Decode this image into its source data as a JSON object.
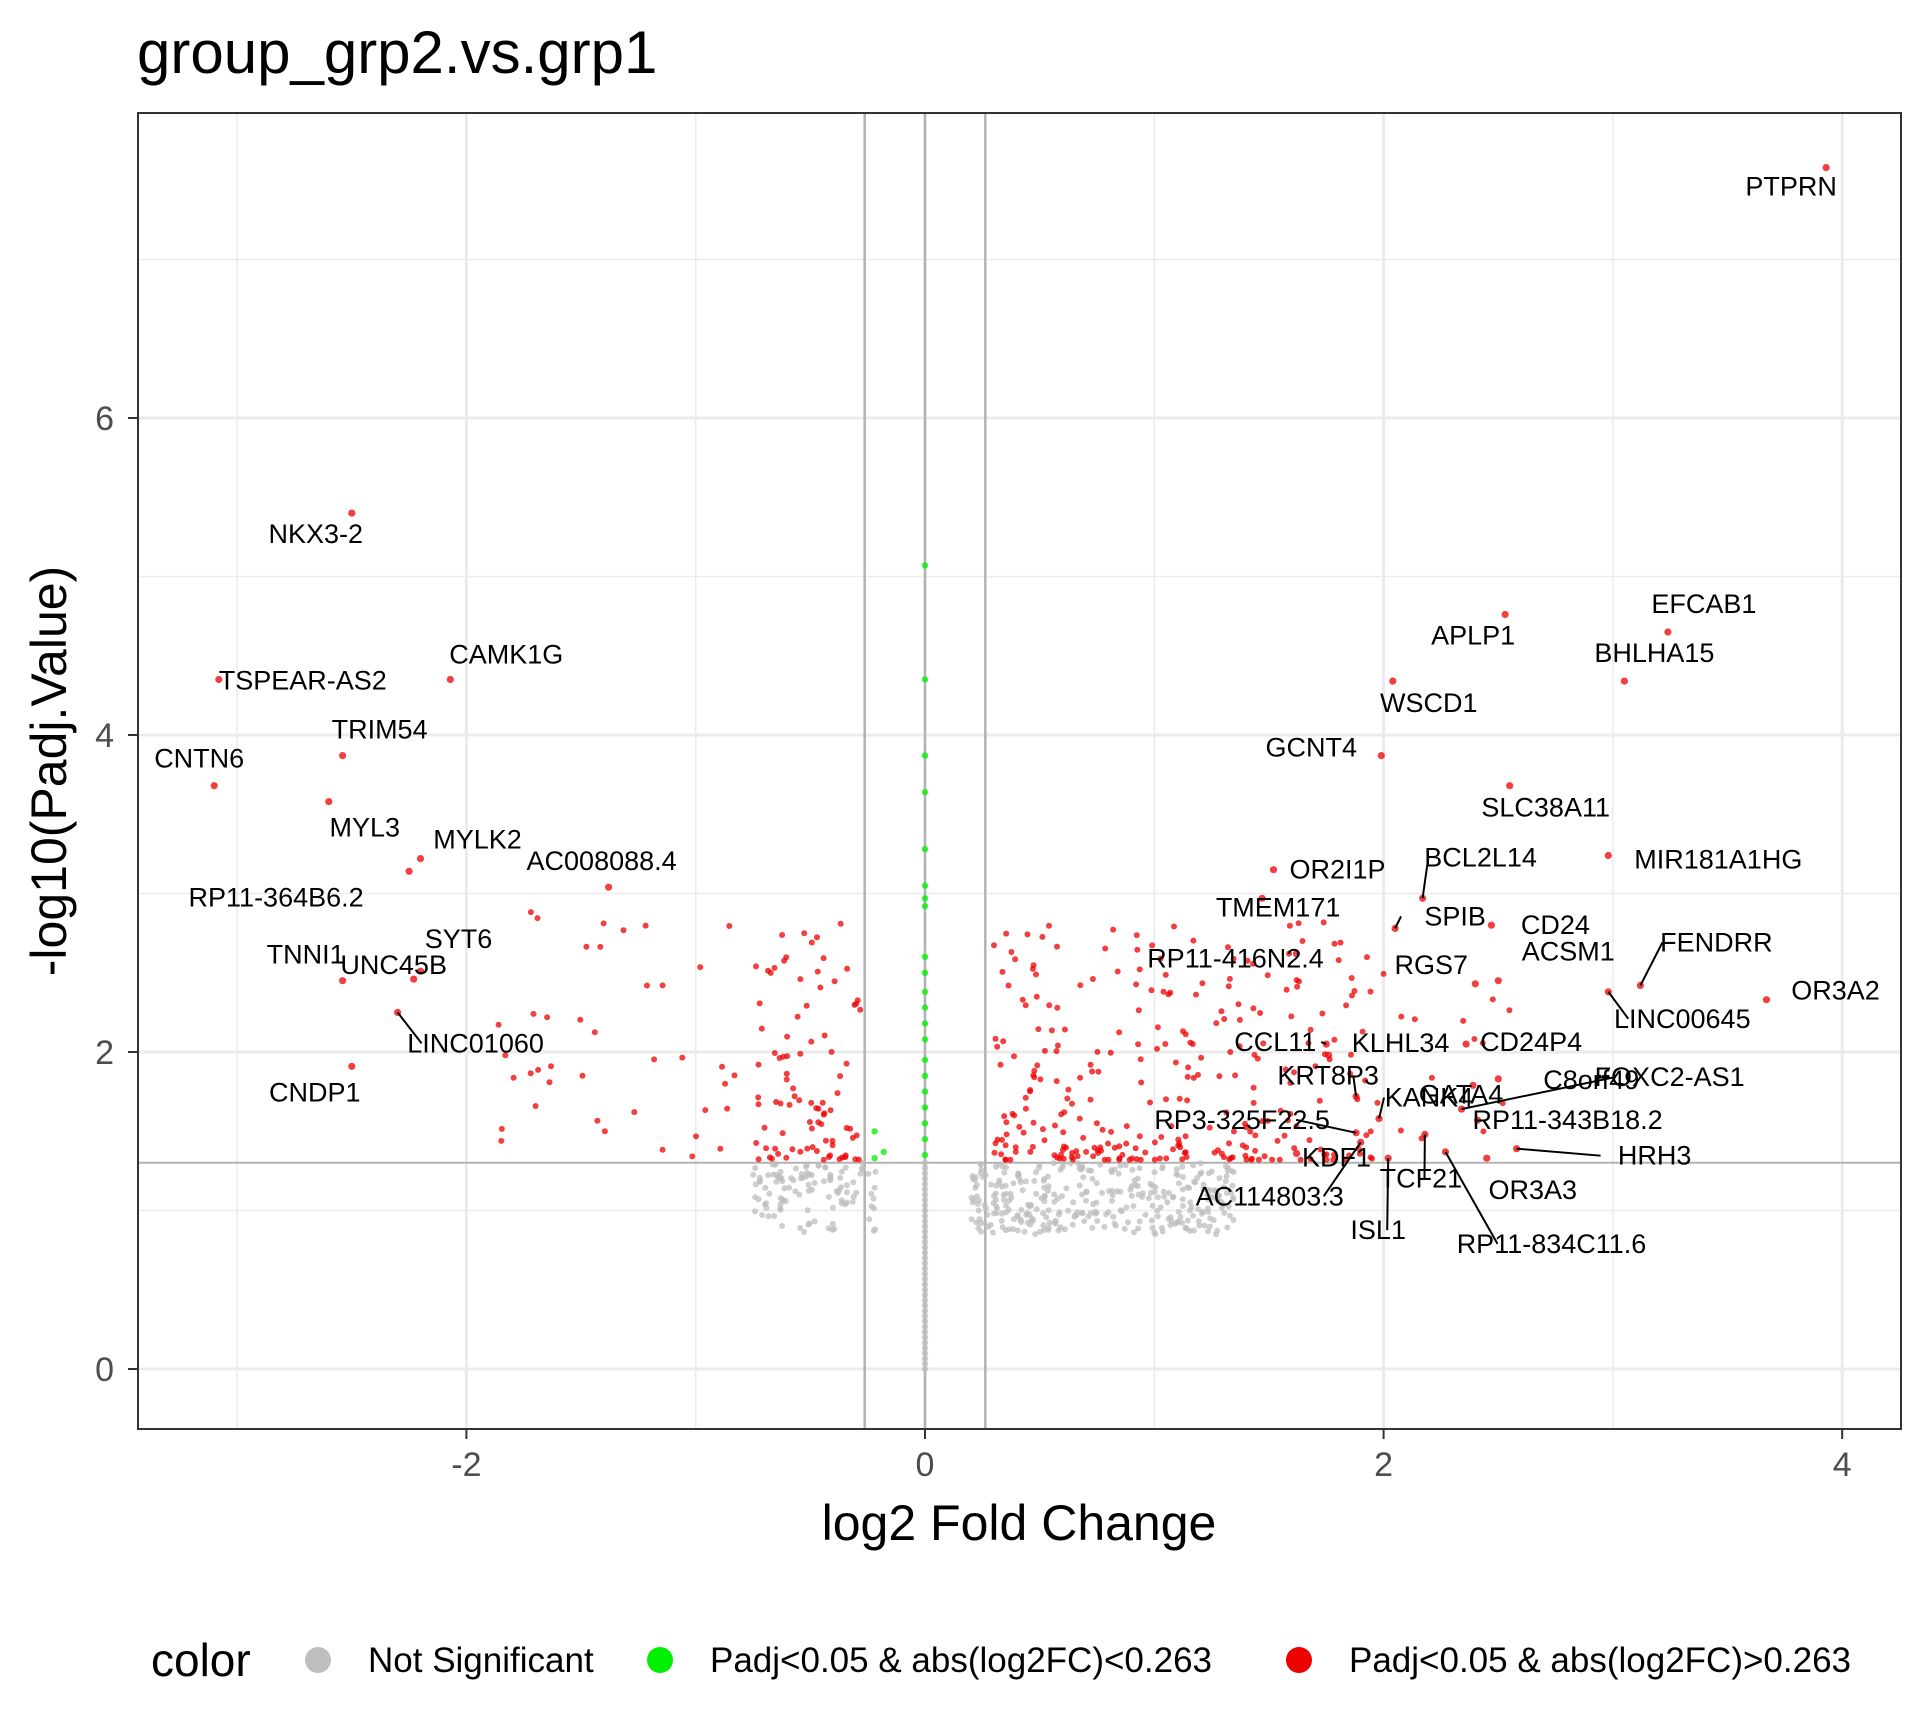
{
  "chart_data": {
    "type": "scatter",
    "title": "group_grp2.vs.grp1",
    "xlabel": "log2 Fold Change",
    "ylabel": "-log10(Padj.Value)",
    "xlim": [
      -3.45,
      4.3
    ],
    "ylim": [
      -0.38,
      7.9
    ],
    "x_ticks": [
      -2,
      0,
      2,
      4
    ],
    "x_tick_labels": [
      "-2",
      "0",
      "2",
      "4"
    ],
    "y_ticks": [
      0,
      2,
      4,
      6
    ],
    "y_tick_labels": [
      "0",
      "2",
      "4",
      "6"
    ],
    "grid": true,
    "reference_lines": {
      "vertical": [
        -0.263,
        0,
        0.263
      ],
      "horizontal": [
        1.301
      ]
    },
    "legend": {
      "title": "color",
      "position": "bottom",
      "entries": [
        {
          "label": "Not Significant",
          "color": "#bebebe"
        },
        {
          "label": "Padj<0.05 & abs(log2FC)<0.263",
          "color": "#00ee00"
        },
        {
          "label": "Padj<0.05 & abs(log2FC)>0.263",
          "color": "#ee0000"
        }
      ]
    },
    "series": [
      {
        "name": "Padj<0.05 & abs(log2FC)>0.263",
        "color": "#ee0000",
        "labeled_points": [
          {
            "label": "PTPRN",
            "x": 3.93,
            "y": 7.58
          },
          {
            "label": "NKX3-2",
            "x": -2.5,
            "y": 5.4
          },
          {
            "label": "EFCAB1",
            "x": 3.24,
            "y": 4.65
          },
          {
            "label": "APLP1",
            "x": 2.53,
            "y": 4.76
          },
          {
            "label": "BHLHA15",
            "x": 3.05,
            "y": 4.34
          },
          {
            "label": "WSCD1",
            "x": 2.04,
            "y": 4.34
          },
          {
            "label": "CAMK1G",
            "x": -2.07,
            "y": 4.35
          },
          {
            "label": "TSPEAR-AS2",
            "x": -3.08,
            "y": 4.35
          },
          {
            "label": "TRIM54",
            "x": -2.54,
            "y": 3.87
          },
          {
            "label": "CNTN6",
            "x": -3.1,
            "y": 3.68
          },
          {
            "label": "GCNT4",
            "x": 1.99,
            "y": 3.87
          },
          {
            "label": "SLC38A11",
            "x": 2.55,
            "y": 3.68
          },
          {
            "label": "MYL3",
            "x": -2.6,
            "y": 3.58
          },
          {
            "label": "MYLK2",
            "x": -2.2,
            "y": 3.22
          },
          {
            "label": "MIR181A1HG",
            "x": 2.98,
            "y": 3.24
          },
          {
            "label": "OR2I1P",
            "x": 1.52,
            "y": 3.15
          },
          {
            "label": "RP11-364B6.2",
            "x": -2.25,
            "y": 3.14
          },
          {
            "label": "AC008088.4",
            "x": -1.38,
            "y": 3.04
          },
          {
            "label": "BCL2L14",
            "x": 2.17,
            "y": 2.97
          },
          {
            "label": "TMEM171",
            "x": 1.47,
            "y": 2.97
          },
          {
            "label": "SPIB",
            "x": 2.05,
            "y": 2.78
          },
          {
            "label": "CD24",
            "x": 2.47,
            "y": 2.8
          },
          {
            "label": "FENDRR",
            "x": 3.12,
            "y": 2.42
          },
          {
            "label": "RGS7",
            "x": 2.4,
            "y": 2.43
          },
          {
            "label": "ACSM1",
            "x": 2.5,
            "y": 2.45
          },
          {
            "label": "OR3A2",
            "x": 3.67,
            "y": 2.33
          },
          {
            "label": "LINC00645",
            "x": 2.98,
            "y": 2.38
          },
          {
            "label": "RP11-416N2.4",
            "x": 1.62,
            "y": 2.62
          },
          {
            "label": "TNNI1",
            "x": -2.54,
            "y": 2.45
          },
          {
            "label": "SYT6",
            "x": -2.2,
            "y": 2.51
          },
          {
            "label": "UNC45B",
            "x": -2.23,
            "y": 2.46
          },
          {
            "label": "LINC01060",
            "x": -2.3,
            "y": 2.25
          },
          {
            "label": "CCL11",
            "x": 1.75,
            "y": 2.05
          },
          {
            "label": "KLHL34",
            "x": 1.76,
            "y": 1.98
          },
          {
            "label": "CD24P4",
            "x": 2.36,
            "y": 2.05
          },
          {
            "label": "CNDP1",
            "x": -2.5,
            "y": 1.91
          },
          {
            "label": "KRT8P3",
            "x": 1.88,
            "y": 1.72
          },
          {
            "label": "GATA4",
            "x": 2.39,
            "y": 1.79
          },
          {
            "label": "C8orf49",
            "x": 2.5,
            "y": 1.83
          },
          {
            "label": "FOXC2-AS1",
            "x": 2.34,
            "y": 1.64
          },
          {
            "label": "RP3-325F22.5",
            "x": 1.88,
            "y": 1.49
          },
          {
            "label": "KANK4",
            "x": 1.98,
            "y": 1.58
          },
          {
            "label": "RP11-343B18.2",
            "x": 2.41,
            "y": 1.57
          },
          {
            "label": "KDF1",
            "x": 1.62,
            "y": 1.36
          },
          {
            "label": "HRH3",
            "x": 2.58,
            "y": 1.39
          },
          {
            "label": "TCF21",
            "x": 2.18,
            "y": 1.48
          },
          {
            "label": "OR3A3",
            "x": 2.45,
            "y": 1.33
          },
          {
            "label": "AC114803.3",
            "x": 1.9,
            "y": 1.43
          },
          {
            "label": "ISL1",
            "x": 2.02,
            "y": 1.33
          },
          {
            "label": "RP11-834C11.6",
            "x": 2.27,
            "y": 1.37
          }
        ]
      },
      {
        "name": "Padj<0.05 & abs(log2FC)<0.263",
        "color": "#00ee00",
        "x": 0,
        "y_values": [
          5.07,
          4.35,
          3.87,
          3.64,
          3.28,
          3.05,
          2.97,
          2.92,
          2.6,
          2.5,
          2.38,
          2.28,
          2.18,
          2.08,
          1.95,
          1.85,
          1.75,
          1.65,
          1.55,
          1.45,
          1.35
        ],
        "offcenter_points": [
          {
            "x": -0.22,
            "y": 1.5
          },
          {
            "x": -0.22,
            "y": 1.33
          },
          {
            "x": -0.18,
            "y": 1.37
          }
        ]
      },
      {
        "name": "Not Significant",
        "color": "#bebebe",
        "note_ranges": {
          "negative_x": [
            -0.75,
            -0.2
          ],
          "positive_x": [
            0.2,
            1.35
          ],
          "y": [
            0.85,
            1.3
          ],
          "x0_y": [
            0.0,
            1.3
          ]
        }
      }
    ]
  }
}
